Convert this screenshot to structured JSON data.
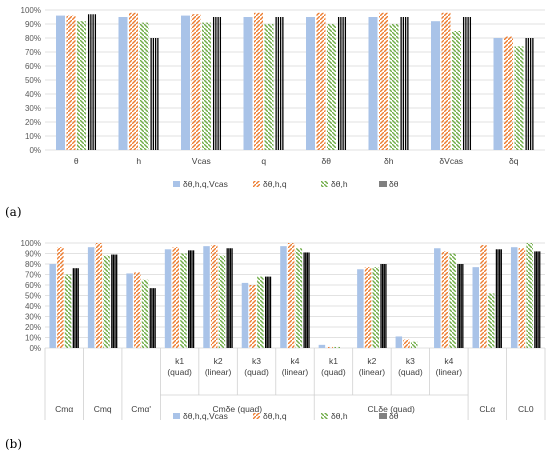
{
  "colors": {
    "s0": "#a9c3e8",
    "s1": "#ed7d31",
    "s2": "#70ad47",
    "s3": "#000000",
    "grid": "#d9d9d9",
    "text": "#404040"
  },
  "panel_labels": {
    "a": "(a)",
    "b": "(b)"
  },
  "chart_data": [
    {
      "type": "bar",
      "title": "",
      "ylim": [
        0,
        100
      ],
      "yticks": [
        "0%",
        "10%",
        "20%",
        "30%",
        "40%",
        "50%",
        "60%",
        "70%",
        "80%",
        "90%",
        "100%"
      ],
      "categories": [
        "θ",
        "h",
        "Vcas",
        "q",
        "δθ",
        "δh",
        "δVcas",
        "δq"
      ],
      "series": [
        {
          "name": "δθ,h,q,Vcas",
          "values": [
            96,
            95,
            96,
            95,
            95,
            95,
            92,
            80
          ]
        },
        {
          "name": "δθ,h,q",
          "values": [
            96,
            98,
            97,
            98,
            98,
            98,
            98,
            81
          ]
        },
        {
          "name": "δθ,h",
          "values": [
            92,
            91,
            91,
            90,
            90,
            90,
            85,
            74
          ]
        },
        {
          "name": "δθ",
          "values": [
            97,
            80,
            95,
            95,
            95,
            95,
            95,
            80
          ]
        }
      ],
      "legend": "bottom",
      "grid": true
    },
    {
      "type": "bar",
      "title": "",
      "ylim": [
        0,
        100
      ],
      "yticks": [
        "0%",
        "10%",
        "20%",
        "30%",
        "40%",
        "50%",
        "60%",
        "70%",
        "80%",
        "90%",
        "100%"
      ],
      "categories": [
        "",
        "",
        "",
        "k1 (quad)",
        "k2 (linear)",
        "k3 (quad)",
        "k4 (linear)",
        "k1 (quad)",
        "k2 (linear)",
        "k3 (quad)",
        "k4 (linear)",
        "",
        ""
      ],
      "groups": [
        {
          "label": "Cmα",
          "span": [
            0,
            0
          ]
        },
        {
          "label": "Cmq",
          "span": [
            1,
            1
          ]
        },
        {
          "label": "Cmα'",
          "span": [
            2,
            2
          ]
        },
        {
          "label": "Cmδe (quad)",
          "span": [
            3,
            6
          ]
        },
        {
          "label": "CLδe (quad)",
          "span": [
            7,
            10
          ]
        },
        {
          "label": "CLα",
          "span": [
            11,
            11
          ]
        },
        {
          "label": "CL0",
          "span": [
            12,
            12
          ]
        }
      ],
      "series": [
        {
          "name": "δθ,h,q,Vcas",
          "values": [
            80,
            96,
            71,
            94,
            97,
            62,
            97,
            3,
            75,
            11,
            95,
            77,
            96
          ]
        },
        {
          "name": "δθ,h,q",
          "values": [
            96,
            100,
            72,
            96,
            98,
            60,
            100,
            1,
            77,
            8,
            92,
            98,
            95
          ]
        },
        {
          "name": "δθ,h",
          "values": [
            70,
            88,
            65,
            90,
            88,
            68,
            95,
            1,
            77,
            6,
            90,
            52,
            100
          ]
        },
        {
          "name": "δθ",
          "values": [
            76,
            89,
            57,
            93,
            95,
            68,
            91,
            0,
            80,
            0,
            80,
            94,
            92
          ]
        }
      ],
      "legend": "bottom",
      "grid": true
    }
  ]
}
